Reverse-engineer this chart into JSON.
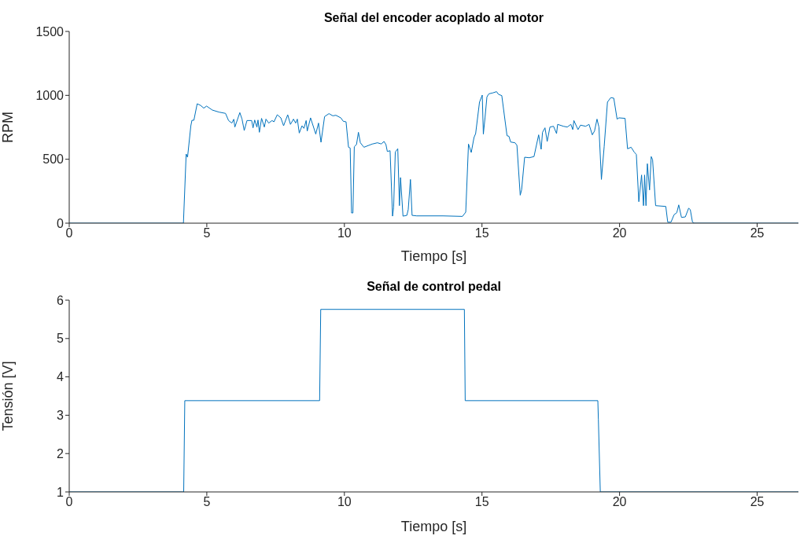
{
  "chart_data": [
    {
      "type": "line",
      "title": "Señal del encoder acoplado al motor",
      "xlabel": "Tiempo [s]",
      "ylabel": "RPM",
      "color": "#0072bd",
      "xlim": [
        0,
        26.5
      ],
      "ylim": [
        0,
        1500
      ],
      "xticks": [
        0,
        5,
        10,
        15,
        20,
        25
      ],
      "yticks": [
        0,
        500,
        1000,
        1500
      ],
      "x": [
        0,
        4.15,
        4.25,
        4.3,
        4.42,
        4.46,
        4.53,
        4.65,
        4.77,
        4.89,
        4.99,
        5.2,
        5.44,
        5.68,
        5.79,
        5.91,
        5.98,
        6.02,
        6.2,
        6.28,
        6.36,
        6.46,
        6.63,
        6.68,
        6.74,
        6.82,
        6.86,
        6.91,
        6.99,
        7.09,
        7.15,
        7.25,
        7.37,
        7.44,
        7.56,
        7.69,
        7.79,
        7.94,
        8.04,
        8.15,
        8.23,
        8.29,
        8.36,
        8.46,
        8.53,
        8.61,
        8.65,
        8.77,
        8.96,
        9.06,
        9.15,
        9.28,
        9.44,
        9.58,
        9.69,
        9.87,
        9.96,
        10.06,
        10.15,
        10.21,
        10.26,
        10.31,
        10.36,
        10.44,
        10.51,
        10.58,
        10.71,
        10.89,
        11.01,
        11.2,
        11.34,
        11.44,
        11.51,
        11.56,
        11.66,
        11.75,
        11.79,
        11.85,
        11.94,
        12.0,
        12.04,
        12.13,
        12.27,
        12.32,
        12.4,
        12.46,
        12.63,
        13.58,
        14.29,
        14.41,
        14.51,
        14.61,
        14.71,
        14.77,
        14.91,
        15.01,
        15.05,
        15.11,
        15.18,
        15.25,
        15.39,
        15.53,
        15.6,
        15.72,
        15.91,
        15.98,
        16.04,
        16.2,
        16.27,
        16.39,
        16.44,
        16.55,
        16.72,
        16.89,
        17.06,
        17.15,
        17.2,
        17.29,
        17.37,
        17.47,
        17.6,
        17.71,
        17.75,
        17.96,
        18.1,
        18.23,
        18.3,
        18.34,
        18.49,
        18.58,
        18.77,
        18.89,
        19.01,
        19.09,
        19.18,
        19.25,
        19.34,
        19.44,
        19.56,
        19.68,
        19.79,
        19.91,
        19.98,
        20.2,
        20.29,
        20.42,
        20.53,
        20.61,
        20.7,
        20.8,
        20.87,
        20.91,
        20.96,
        21.01,
        21.09,
        21.15,
        21.2,
        21.31,
        21.68,
        21.75,
        21.87,
        21.98,
        22.08,
        22.15,
        22.25,
        22.39,
        22.51,
        22.57,
        22.65,
        22.72,
        26.5
      ],
      "values": [
        0,
        0,
        541,
        516,
        762,
        805,
        805,
        934,
        922,
        900,
        916,
        885,
        869,
        859,
        803,
        783,
        813,
        752,
        865,
        814,
        725,
        803,
        803,
        746,
        807,
        752,
        807,
        711,
        820,
        752,
        814,
        783,
        803,
        793,
        848,
        824,
        762,
        848,
        773,
        814,
        783,
        814,
        705,
        762,
        742,
        803,
        721,
        824,
        697,
        783,
        633,
        834,
        857,
        840,
        844,
        824,
        797,
        793,
        594,
        588,
        80,
        80,
        598,
        615,
        711,
        629,
        594,
        609,
        619,
        629,
        620,
        639,
        615,
        561,
        567,
        55,
        127,
        557,
        582,
        137,
        357,
        55,
        61,
        106,
        342,
        61,
        57,
        57,
        53,
        86,
        619,
        553,
        670,
        701,
        947,
        1002,
        697,
        824,
        988,
        1012,
        1019,
        1029,
        1008,
        998,
        684,
        680,
        635,
        629,
        609,
        219,
        260,
        516,
        512,
        521,
        691,
        578,
        711,
        746,
        639,
        752,
        758,
        701,
        773,
        758,
        752,
        773,
        732,
        803,
        732,
        767,
        758,
        773,
        691,
        721,
        814,
        752,
        342,
        598,
        947,
        982,
        978,
        814,
        824,
        820,
        582,
        594,
        557,
        537,
        168,
        377,
        137,
        377,
        137,
        465,
        260,
        521,
        496,
        137,
        131,
        8,
        8,
        66,
        82,
        143,
        45,
        49,
        117,
        106,
        8,
        0,
        0
      ]
    },
    {
      "type": "line",
      "title": "Señal de control pedal",
      "xlabel": "Tiempo [s]",
      "ylabel": "Tensión [V]",
      "color": "#0072bd",
      "xlim": [
        0,
        26.5
      ],
      "ylim": [
        1,
        6
      ],
      "xticks": [
        0,
        5,
        10,
        15,
        20,
        25
      ],
      "yticks": [
        1,
        2,
        3,
        4,
        5,
        6
      ],
      "x": [
        0,
        4.16,
        4.2,
        9.1,
        9.14,
        14.36,
        14.39,
        19.21,
        19.23,
        19.3,
        26.5
      ],
      "values": [
        1,
        1,
        3.38,
        3.38,
        5.76,
        5.76,
        3.38,
        3.38,
        2.9,
        1,
        1
      ]
    }
  ]
}
